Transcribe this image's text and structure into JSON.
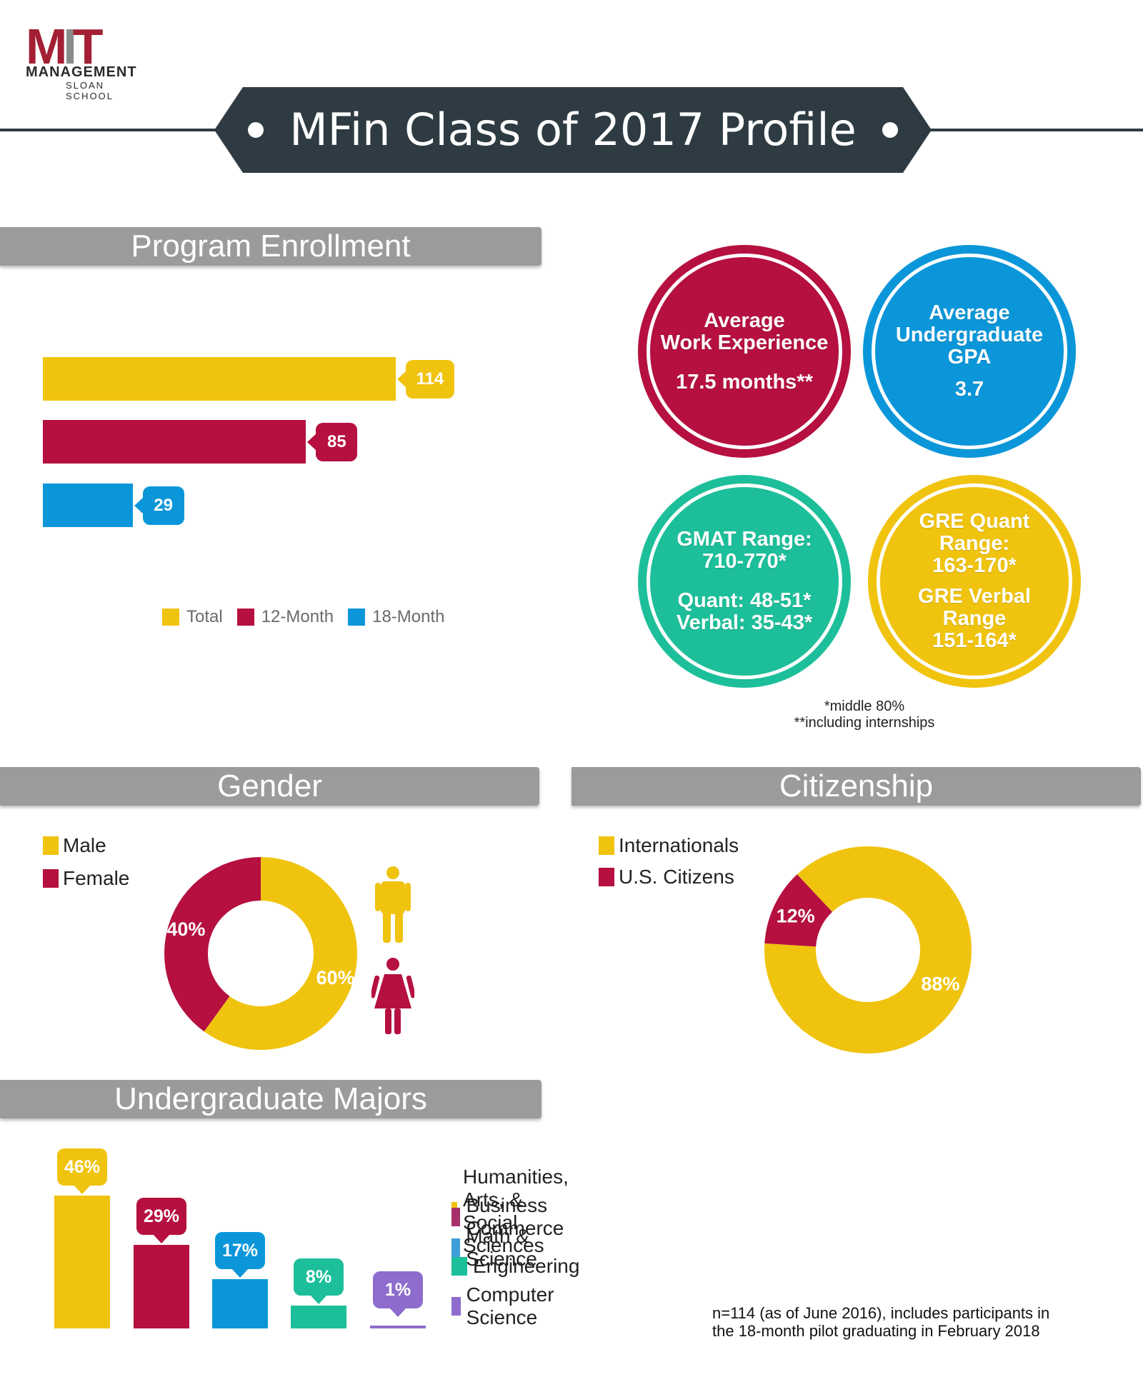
{
  "logo": {
    "mit": "MIT",
    "management": "MANAGEMENT",
    "school": "SLOAN SCHOOL"
  },
  "title": "MFin Class of 2017 Profile",
  "colors": {
    "yellow": "#f0c30f",
    "crimson": "#b5103f",
    "blue": "#0b96d9",
    "teal": "#1dbf9a",
    "purple": "#8e6ccd",
    "dark": "#2e3b42",
    "gray": "#9b9b9b"
  },
  "sections": {
    "enrollment": "Program Enrollment",
    "gender": "Gender",
    "citizenship": "Citizenship",
    "majors": "Undergraduate Majors"
  },
  "stats": {
    "work": {
      "title": "Average\nWork Experience",
      "value": "17.5 months**"
    },
    "gpa": {
      "title": "Average\nUndergraduate\nGPA",
      "value": "3.7"
    },
    "gmat": {
      "title": "GMAT Range:\n710-770*",
      "detail": "Quant: 48-51*\nVerbal: 35-43*"
    },
    "gre": {
      "title": "GRE Quant\nRange:\n163-170*",
      "detail": "GRE Verbal\nRange\n151-164*"
    }
  },
  "footnotes": {
    "middle": "*middle 80%",
    "internships": "**including internships"
  },
  "note": "n=114 (as of June 2016), includes participants in\nthe 18-month pilot graduating in February 2018",
  "chart_data": [
    {
      "type": "bar",
      "orientation": "horizontal",
      "title": "Program Enrollment",
      "categories": [
        "Total",
        "12-Month",
        "18-Month"
      ],
      "values": [
        114,
        85,
        29
      ],
      "labels": [
        "114",
        "85",
        "29"
      ],
      "colors": [
        "#f0c30f",
        "#b5103f",
        "#0b96d9"
      ],
      "legend": [
        "Total",
        "12-Month",
        "18-Month"
      ],
      "legend_position": "bottom"
    },
    {
      "type": "pie",
      "donut": true,
      "title": "Gender",
      "categories": [
        "Male",
        "Female"
      ],
      "values": [
        60,
        40
      ],
      "labels": [
        "60%",
        "40%"
      ],
      "colors": [
        "#f0c30f",
        "#b5103f"
      ],
      "legend": [
        "Male",
        "Female"
      ],
      "legend_position": "top-left"
    },
    {
      "type": "pie",
      "donut": true,
      "title": "Citizenship",
      "categories": [
        "Internationals",
        "U.S. Citizens"
      ],
      "values": [
        88,
        12
      ],
      "labels": [
        "88%",
        "12%"
      ],
      "colors": [
        "#f0c30f",
        "#b5103f"
      ],
      "legend": [
        "Internationals",
        "U.S. Citizens"
      ],
      "legend_position": "top-left"
    },
    {
      "type": "bar",
      "title": "Undergraduate Majors",
      "categories": [
        "Humanities, Arts, & Social Sciences",
        "Business Commerce",
        "Math & Science",
        "Engineering",
        "Computer Science"
      ],
      "values": [
        46,
        29,
        17,
        8,
        1
      ],
      "labels": [
        "46%",
        "29%",
        "17%",
        "8%",
        "1%"
      ],
      "colors": [
        "#f0c30f",
        "#b5103f",
        "#0b96d9",
        "#1dbf9a",
        "#8e6ccd"
      ],
      "legend_colors": [
        "#f0c30f",
        "#a82f6a",
        "#3d9fd8",
        "#1dbf9a",
        "#8e6ccd"
      ],
      "legend_position": "right"
    }
  ]
}
